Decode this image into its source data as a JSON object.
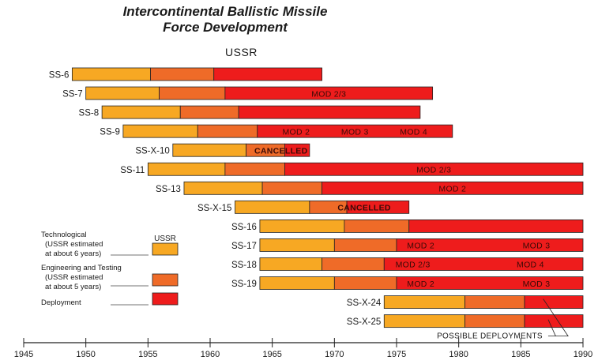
{
  "chart_data": {
    "type": "bar",
    "title": [
      "Intercontinental Ballistic Missile",
      "Force Development"
    ],
    "subtitle": "USSR",
    "x_range": [
      1945,
      1990
    ],
    "x_ticks": [
      "1945",
      "1950",
      "1955",
      "1960",
      "1965",
      "1970",
      "1975",
      "1980",
      "1985",
      "1990"
    ],
    "phases": [
      {
        "key": "tech",
        "color": "#f7a823"
      },
      {
        "key": "eng",
        "color": "#ef6b28"
      },
      {
        "key": "dep",
        "color": "#ee1c1c"
      }
    ],
    "systems": [
      {
        "name": "SS-6",
        "start": 1948.9,
        "eng": 1955.2,
        "dep": 1960.3,
        "end": 1969.0,
        "labels": []
      },
      {
        "name": "SS-7",
        "start": 1950.0,
        "eng": 1955.9,
        "dep": 1961.2,
        "end": 1977.9,
        "labels": [
          "MOD 2/3"
        ]
      },
      {
        "name": "SS-8",
        "start": 1951.3,
        "eng": 1957.6,
        "dep": 1962.3,
        "end": 1976.9,
        "labels": []
      },
      {
        "name": "SS-9",
        "start": 1953.0,
        "eng": 1959.0,
        "dep": 1963.8,
        "end": 1979.5,
        "labels": [
          "MOD 2",
          "MOD 3",
          "MOD 4"
        ]
      },
      {
        "name": "SS-X-10",
        "start": 1957.0,
        "eng": 1962.9,
        "dep": 1966.0,
        "end": 1968.0,
        "labels": [
          "CANCELLED"
        ]
      },
      {
        "name": "SS-11",
        "start": 1955.0,
        "eng": 1961.2,
        "dep": 1966.0,
        "end": 1990.0,
        "labels": [
          "MOD 2/3"
        ]
      },
      {
        "name": "SS-13",
        "start": 1957.9,
        "eng": 1964.2,
        "dep": 1969.0,
        "end": 1990.0,
        "labels": [
          "MOD 2"
        ]
      },
      {
        "name": "SS-X-15",
        "start": 1962.0,
        "eng": 1968.0,
        "dep": 1971.0,
        "end": 1976.0,
        "labels": [
          "CANCELLED"
        ]
      },
      {
        "name": "SS-16",
        "start": 1964.0,
        "eng": 1970.8,
        "dep": 1976.0,
        "end": 1990.0,
        "labels": []
      },
      {
        "name": "SS-17",
        "start": 1964.0,
        "eng": 1970.0,
        "dep": 1975.0,
        "end": 1990.0,
        "labels": [
          "MOD 2",
          "MOD 3"
        ]
      },
      {
        "name": "SS-18",
        "start": 1964.0,
        "eng": 1969.0,
        "dep": 1974.0,
        "end": 1990.0,
        "labels": [
          "MOD 2/3",
          "MOD 4"
        ]
      },
      {
        "name": "SS-19",
        "start": 1964.0,
        "eng": 1970.0,
        "dep": 1975.0,
        "end": 1990.0,
        "labels": [
          "MOD 2",
          "MOD 3"
        ]
      },
      {
        "name": "SS-X-24",
        "start": 1974.0,
        "eng": 1980.5,
        "dep": 1985.3,
        "end": 1990.0,
        "labels": []
      },
      {
        "name": "SS-X-25",
        "start": 1974.0,
        "eng": 1980.5,
        "dep": 1985.3,
        "end": 1990.0,
        "labels": []
      }
    ],
    "annotation": "POSSIBLE DEPLOYMENTS",
    "legend": {
      "placement": "left",
      "header": "USSR",
      "items": [
        {
          "key": "tech",
          "lines": [
            "Technological",
            "(USSR estimated",
            "at about 6 years)"
          ]
        },
        {
          "key": "eng",
          "lines": [
            "Engineering and Testing",
            "(USSR estimated",
            "at about 5 years)"
          ]
        },
        {
          "key": "dep",
          "lines": [
            "Deployment"
          ]
        }
      ]
    }
  }
}
